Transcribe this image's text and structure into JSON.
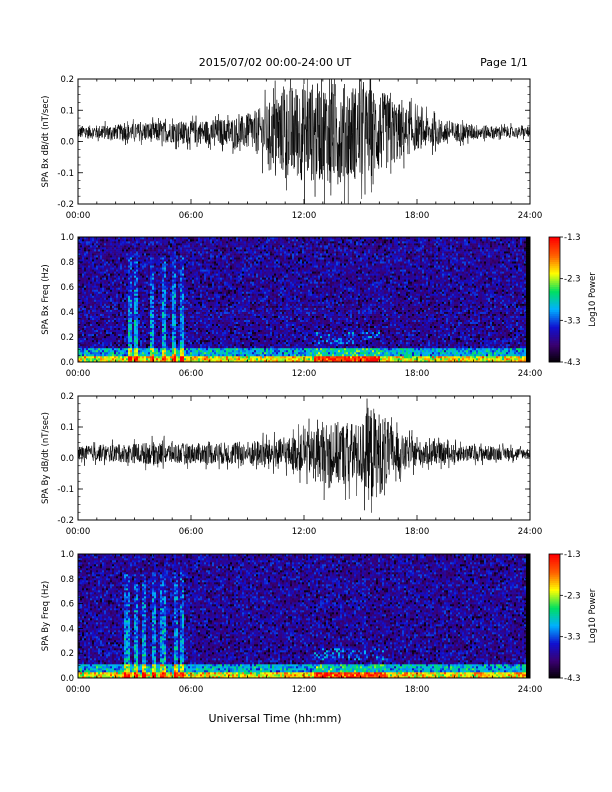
{
  "header": {
    "title": "2015/07/02  00:00-24:00 UT",
    "page": "Page 1/1"
  },
  "footer": {
    "xlabel": "Universal Time (hh:mm)"
  },
  "colorbar": {
    "label": "Log10 Power",
    "ticks": [
      "-1.3",
      "-2.3",
      "-3.3",
      "-4.3"
    ],
    "range": [
      -4.3,
      -1.3
    ],
    "colors": [
      "#000000",
      "#3a0070",
      "#1010d0",
      "#00b0ff",
      "#00e060",
      "#ffff00",
      "#ff6000",
      "#ff0000"
    ]
  },
  "chart_data": [
    {
      "type": "line",
      "ylabel": "SPA Bx dB/dt (nT/sec)",
      "xlim": [
        0,
        24
      ],
      "ylim": [
        -0.2,
        0.2
      ],
      "xticks": [
        "00:00",
        "06:00",
        "12:00",
        "18:00",
        "24:00"
      ],
      "yticks": [
        "0.2",
        "0.1",
        "0.0",
        "-0.1",
        "-0.2"
      ],
      "envelope": {
        "x": [
          0,
          2,
          4,
          6,
          8,
          9,
          10,
          11,
          12,
          13,
          14,
          15,
          16,
          17,
          18,
          20,
          22,
          23.8
        ],
        "amp": [
          0.025,
          0.03,
          0.04,
          0.045,
          0.055,
          0.07,
          0.11,
          0.18,
          0.2,
          0.2,
          0.2,
          0.19,
          0.17,
          0.12,
          0.07,
          0.04,
          0.025,
          0.02
        ]
      },
      "baseline": 0.03,
      "line_color": "#000000"
    },
    {
      "type": "heatmap",
      "ylabel": "SPA Bx Freq (Hz)",
      "xlim": [
        0,
        24
      ],
      "ylim": [
        0.0,
        1.0
      ],
      "xticks": [
        "00:00",
        "06:00",
        "12:00",
        "18:00",
        "24:00"
      ],
      "yticks": [
        "1.0",
        "0.8",
        "0.6",
        "0.4",
        "0.2",
        "0.0"
      ],
      "bright_columns_hours": [
        2.8,
        3.1,
        3.9,
        4.6,
        5.1,
        5.5
      ],
      "bright_band_hours": [
        12.5,
        16.0
      ]
    },
    {
      "type": "line",
      "ylabel": "SPA By dB/dt (nT/sec)",
      "xlim": [
        0,
        24
      ],
      "ylim": [
        -0.2,
        0.2
      ],
      "xticks": [
        "00:00",
        "06:00",
        "12:00",
        "18:00",
        "24:00"
      ],
      "yticks": [
        "0.2",
        "0.1",
        "0.0",
        "-0.1",
        "-0.2"
      ],
      "envelope": {
        "x": [
          0,
          2,
          4,
          6,
          8,
          10,
          11,
          12,
          13,
          14,
          15,
          15.5,
          16,
          17,
          18,
          20,
          22,
          23.8
        ],
        "amp": [
          0.03,
          0.035,
          0.045,
          0.04,
          0.045,
          0.055,
          0.06,
          0.08,
          0.12,
          0.13,
          0.12,
          0.2,
          0.17,
          0.08,
          0.05,
          0.035,
          0.03,
          0.02
        ]
      },
      "baseline": 0.015,
      "line_color": "#000000"
    },
    {
      "type": "heatmap",
      "ylabel": "SPA By Freq (Hz)",
      "xlim": [
        0,
        24
      ],
      "ylim": [
        0.0,
        1.0
      ],
      "xticks": [
        "00:00",
        "06:00",
        "12:00",
        "18:00",
        "24:00"
      ],
      "yticks": [
        "1.0",
        "0.8",
        "0.6",
        "0.4",
        "0.2",
        "0.0"
      ],
      "bright_columns_hours": [
        2.6,
        3.1,
        3.5,
        4.0,
        4.5,
        5.2,
        5.5
      ],
      "bright_band_hours": [
        12.5,
        16.5
      ]
    }
  ]
}
